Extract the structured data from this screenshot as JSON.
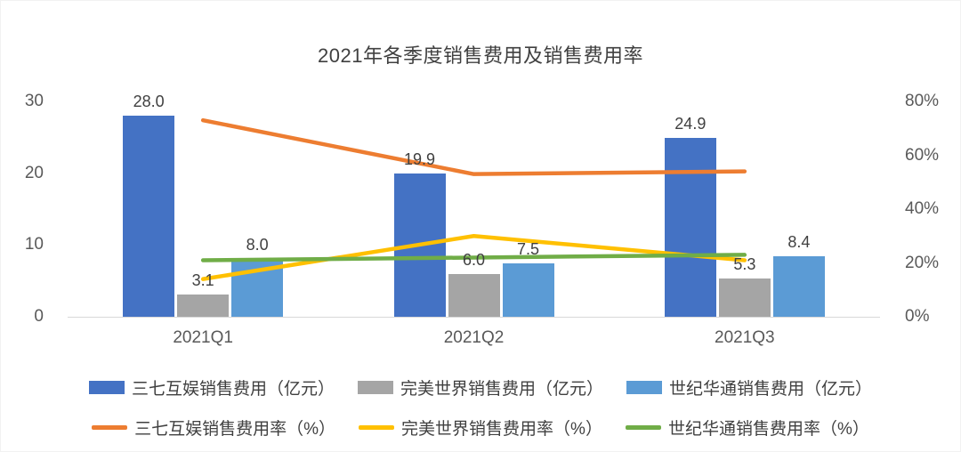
{
  "chart_data": {
    "type": "bar+line",
    "title": "2021年各季度销售费用及销售费用率",
    "categories": [
      "2021Q1",
      "2021Q2",
      "2021Q3"
    ],
    "bar_series": [
      {
        "name": "三七互娱销售费用（亿元）",
        "color": "#4472C4",
        "values": [
          28.0,
          19.9,
          24.9
        ],
        "labels": [
          "28.0",
          "19.9",
          "24.9"
        ]
      },
      {
        "name": "完美世界销售费用（亿元）",
        "color": "#A5A5A5",
        "values": [
          3.1,
          6.0,
          5.3
        ],
        "labels": [
          "3.1",
          "6.0",
          "5.3"
        ]
      },
      {
        "name": "世纪华通销售费用（亿元）",
        "color": "#5B9BD5",
        "values": [
          8.0,
          7.5,
          8.4
        ],
        "labels": [
          "8.0",
          "7.5",
          "8.4"
        ]
      }
    ],
    "line_series": [
      {
        "name": "三七互娱销售费用率（%）",
        "color": "#ED7D31",
        "values": [
          73,
          53,
          54
        ]
      },
      {
        "name": "完美世界销售费用率（%）",
        "color": "#FFC000",
        "values": [
          14,
          30,
          21
        ]
      },
      {
        "name": "世纪华通销售费用率（%）",
        "color": "#70AD47",
        "values": [
          21,
          22,
          23
        ]
      }
    ],
    "left_axis": {
      "min": 0,
      "max": 30,
      "ticks": [
        "0",
        "10",
        "20",
        "30"
      ]
    },
    "right_axis": {
      "min": 0,
      "max": 80,
      "ticks": [
        "0%",
        "20%",
        "40%",
        "60%",
        "80%"
      ]
    },
    "grid": false,
    "legend_position": "bottom"
  }
}
